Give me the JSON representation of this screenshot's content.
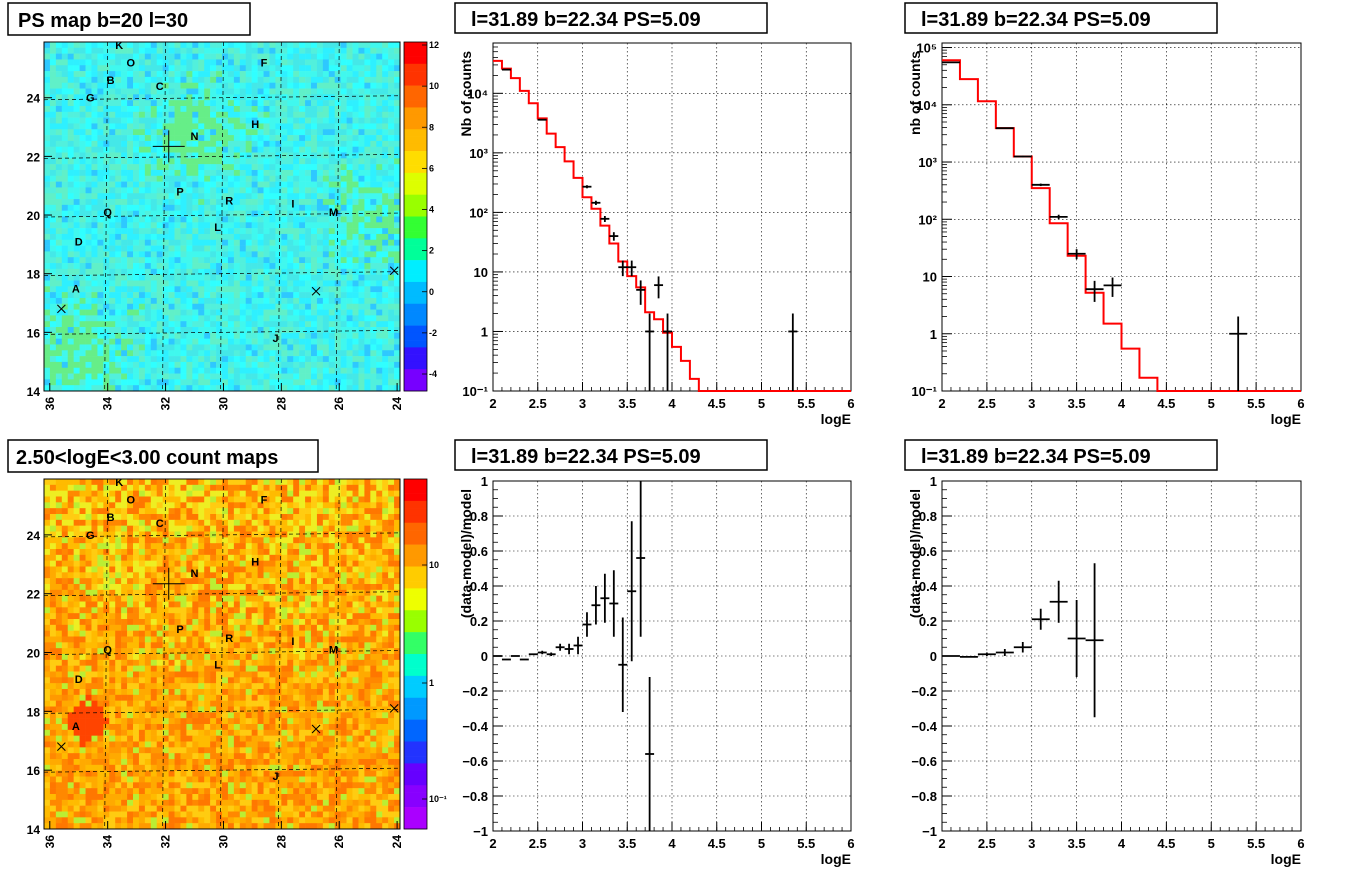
{
  "colors": {
    "model_line": "#ff0000",
    "data_marker": "#000000",
    "grid": "#000000",
    "title_box": "#000000"
  },
  "maps": [
    {
      "title": "PS map b=20 l=30",
      "xticks": [
        "36",
        "34",
        "32",
        "30",
        "28",
        "26",
        "24"
      ],
      "yticks": [
        "14",
        "16",
        "18",
        "20",
        "22",
        "24"
      ],
      "colorbar": {
        "scale": "linear",
        "ticks": [
          "12",
          "10",
          "8",
          "6",
          "4",
          "2",
          "0",
          "-2",
          "-4"
        ]
      },
      "palette": "cyan-green",
      "sources": [
        {
          "label": "K",
          "l": 33.6,
          "b": 25.8
        },
        {
          "label": "O",
          "l": 33.2,
          "b": 25.2
        },
        {
          "label": "F",
          "l": 28.6,
          "b": 25.2
        },
        {
          "label": "B",
          "l": 33.9,
          "b": 24.6
        },
        {
          "label": "G",
          "l": 34.6,
          "b": 24.0
        },
        {
          "label": "C",
          "l": 32.2,
          "b": 24.4
        },
        {
          "label": "H",
          "l": 28.9,
          "b": 23.1
        },
        {
          "label": "N",
          "l": 31.0,
          "b": 22.7
        },
        {
          "label": "P",
          "l": 31.5,
          "b": 20.8
        },
        {
          "label": "R",
          "l": 29.8,
          "b": 20.5
        },
        {
          "label": "I",
          "l": 27.6,
          "b": 20.4
        },
        {
          "label": "M",
          "l": 26.2,
          "b": 20.1
        },
        {
          "label": "Q",
          "l": 34.0,
          "b": 20.1
        },
        {
          "label": "L",
          "l": 30.2,
          "b": 19.6
        },
        {
          "label": "D",
          "l": 35.0,
          "b": 19.1
        },
        {
          "label": "A",
          "l": 35.1,
          "b": 17.5
        },
        {
          "label": "J",
          "l": 28.2,
          "b": 15.8
        }
      ],
      "crosses": [
        {
          "l": 35.6,
          "b": 16.8
        },
        {
          "l": 26.8,
          "b": 17.4
        },
        {
          "l": 24.1,
          "b": 18.1
        }
      ],
      "target": {
        "l": 31.89,
        "b": 22.34
      }
    },
    {
      "title": "2.50<logE<3.00 count maps",
      "xticks": [
        "36",
        "34",
        "32",
        "30",
        "28",
        "26",
        "24"
      ],
      "yticks": [
        "14",
        "16",
        "18",
        "20",
        "22",
        "24"
      ],
      "colorbar": {
        "scale": "log",
        "ticks": [
          "10",
          "1",
          "10⁻¹"
        ]
      },
      "palette": "yellow-red",
      "sources": [
        {
          "label": "K",
          "l": 33.6,
          "b": 25.8
        },
        {
          "label": "O",
          "l": 33.2,
          "b": 25.2
        },
        {
          "label": "F",
          "l": 28.6,
          "b": 25.2
        },
        {
          "label": "B",
          "l": 33.9,
          "b": 24.6
        },
        {
          "label": "G",
          "l": 34.6,
          "b": 24.0
        },
        {
          "label": "C",
          "l": 32.2,
          "b": 24.4
        },
        {
          "label": "H",
          "l": 28.9,
          "b": 23.1
        },
        {
          "label": "N",
          "l": 31.0,
          "b": 22.7
        },
        {
          "label": "P",
          "l": 31.5,
          "b": 20.8
        },
        {
          "label": "R",
          "l": 29.8,
          "b": 20.5
        },
        {
          "label": "I",
          "l": 27.6,
          "b": 20.4
        },
        {
          "label": "M",
          "l": 26.2,
          "b": 20.1
        },
        {
          "label": "Q",
          "l": 34.0,
          "b": 20.1
        },
        {
          "label": "L",
          "l": 30.2,
          "b": 19.6
        },
        {
          "label": "D",
          "l": 35.0,
          "b": 19.1
        },
        {
          "label": "A",
          "l": 35.1,
          "b": 17.5
        },
        {
          "label": "J",
          "l": 28.2,
          "b": 15.8
        }
      ],
      "crosses": [
        {
          "l": 35.6,
          "b": 16.8
        },
        {
          "l": 26.8,
          "b": 17.4
        },
        {
          "l": 24.1,
          "b": 18.1
        }
      ],
      "target": {
        "l": 31.89,
        "b": 22.34
      }
    }
  ],
  "chart_data": [
    {
      "type": "line",
      "title": "l=31.89 b=22.34 PS=5.09",
      "xlabel": "logE",
      "ylabel": "Nb of counts",
      "xlim": [
        2,
        6
      ],
      "ylim": [
        0.1,
        70000
      ],
      "yscale": "log",
      "xticks": [
        "2",
        "2.5",
        "3",
        "3.5",
        "4",
        "4.5",
        "5",
        "5.5",
        "6"
      ],
      "yticks": [
        {
          "v": 0.1,
          "label": "10⁻¹"
        },
        {
          "v": 1,
          "label": "1"
        },
        {
          "v": 10,
          "label": "10"
        },
        {
          "v": 100,
          "label": "10²"
        },
        {
          "v": 1000,
          "label": "10³"
        },
        {
          "v": 10000,
          "label": "10⁴"
        }
      ],
      "grid": true,
      "model": {
        "edges": [
          2.0,
          2.1,
          2.2,
          2.3,
          2.4,
          2.5,
          2.6,
          2.7,
          2.8,
          2.9,
          3.0,
          3.1,
          3.2,
          3.3,
          3.4,
          3.5,
          3.6,
          3.7,
          3.8,
          3.9,
          4.0,
          4.1,
          4.2,
          4.3,
          6.0
        ],
        "values": [
          35000,
          26000,
          18000,
          11000,
          6800,
          3800,
          2100,
          1250,
          720,
          380,
          180,
          115,
          60,
          30,
          15,
          8.5,
          5.5,
          2.1,
          1.6,
          0.95,
          0.55,
          0.32,
          0.16,
          0.1
        ]
      },
      "data": [
        {
          "x": 2.15,
          "y": 25000,
          "xerr": 0.05,
          "yerr": 0
        },
        {
          "x": 2.55,
          "y": 3600,
          "xerr": 0.05,
          "yerr": 0
        },
        {
          "x": 3.05,
          "y": 270,
          "xerr": 0.05,
          "yerr": 16
        },
        {
          "x": 3.15,
          "y": 145,
          "xerr": 0.05,
          "yerr": 12
        },
        {
          "x": 3.25,
          "y": 78,
          "xerr": 0.05,
          "yerr": 9
        },
        {
          "x": 3.35,
          "y": 40,
          "xerr": 0.05,
          "yerr": 6.5
        },
        {
          "x": 3.45,
          "y": 12,
          "xerr": 0.05,
          "yerr": 3.5
        },
        {
          "x": 3.55,
          "y": 12,
          "xerr": 0.05,
          "yerr": 3.5
        },
        {
          "x": 3.65,
          "y": 5,
          "xerr": 0.05,
          "yerr": 2.2
        },
        {
          "x": 3.75,
          "y": 1,
          "xerr": 0.05,
          "yerr": 1
        },
        {
          "x": 3.85,
          "y": 6,
          "xerr": 0.05,
          "yerr": 2.4
        },
        {
          "x": 3.95,
          "y": 1,
          "xerr": 0.05,
          "yerr": 1
        },
        {
          "x": 5.35,
          "y": 1,
          "xerr": 0.05,
          "yerr": 1
        }
      ]
    },
    {
      "type": "line",
      "title": "l=31.89 b=22.34 PS=5.09",
      "xlabel": "logE",
      "ylabel": "nb of counts",
      "xlim": [
        2,
        6
      ],
      "ylim": [
        0.1,
        120000
      ],
      "yscale": "log",
      "xticks": [
        "2",
        "2.5",
        "3",
        "3.5",
        "4",
        "4.5",
        "5",
        "5.5",
        "6"
      ],
      "yticks": [
        {
          "v": 0.1,
          "label": "10⁻¹"
        },
        {
          "v": 1,
          "label": "1"
        },
        {
          "v": 10,
          "label": "10"
        },
        {
          "v": 100,
          "label": "10²"
        },
        {
          "v": 1000,
          "label": "10³"
        },
        {
          "v": 10000,
          "label": "10⁴"
        },
        {
          "v": 100000,
          "label": "10⁵"
        }
      ],
      "grid": true,
      "model": {
        "edges": [
          2.0,
          2.2,
          2.4,
          2.6,
          2.8,
          3.0,
          3.2,
          3.4,
          3.6,
          3.8,
          4.0,
          4.2,
          4.4,
          6.0
        ],
        "values": [
          60000,
          28000,
          11500,
          3900,
          1250,
          350,
          85,
          23,
          5.2,
          1.5,
          0.55,
          0.17,
          0.1
        ]
      },
      "data": [
        {
          "x": 2.1,
          "y": 55000,
          "xerr": 0.1,
          "yerr": 0
        },
        {
          "x": 2.7,
          "y": 3900,
          "xerr": 0.1,
          "yerr": 0
        },
        {
          "x": 2.9,
          "y": 1250,
          "xerr": 0.1,
          "yerr": 35
        },
        {
          "x": 3.1,
          "y": 400,
          "xerr": 0.1,
          "yerr": 20
        },
        {
          "x": 3.3,
          "y": 110,
          "xerr": 0.1,
          "yerr": 10
        },
        {
          "x": 3.5,
          "y": 25,
          "xerr": 0.1,
          "yerr": 5
        },
        {
          "x": 3.7,
          "y": 6,
          "xerr": 0.1,
          "yerr": 2.4
        },
        {
          "x": 3.9,
          "y": 7,
          "xerr": 0.1,
          "yerr": 2.6
        },
        {
          "x": 5.3,
          "y": 1,
          "xerr": 0.1,
          "yerr": 1
        }
      ]
    },
    {
      "type": "scatter",
      "title": "l=31.89 b=22.34 PS=5.09",
      "xlabel": "logE",
      "ylabel": "(data-model)/model",
      "xlim": [
        2,
        6
      ],
      "ylim": [
        -1,
        1
      ],
      "yscale": "linear",
      "xticks": [
        "2",
        "2.5",
        "3",
        "3.5",
        "4",
        "4.5",
        "5",
        "5.5",
        "6"
      ],
      "yticks": [
        {
          "v": 1,
          "label": "1"
        },
        {
          "v": 0.8,
          "label": "0.8"
        },
        {
          "v": 0.6,
          "label": "0.6"
        },
        {
          "v": 0.4,
          "label": "0.4"
        },
        {
          "v": 0.2,
          "label": "0.2"
        },
        {
          "v": 0,
          "label": "0"
        },
        {
          "v": -0.2,
          "label": "−0.2"
        },
        {
          "v": -0.4,
          "label": "−0.4"
        },
        {
          "v": -0.6,
          "label": "−0.6"
        },
        {
          "v": -0.8,
          "label": "−0.8"
        },
        {
          "v": -1,
          "label": "−1"
        }
      ],
      "grid": true,
      "data": [
        {
          "x": 2.05,
          "y": 0.0,
          "xerr": 0.05,
          "yerr": 0
        },
        {
          "x": 2.15,
          "y": -0.02,
          "xerr": 0.05,
          "yerr": 0
        },
        {
          "x": 2.25,
          "y": 0.0,
          "xerr": 0.05,
          "yerr": 0
        },
        {
          "x": 2.35,
          "y": -0.02,
          "xerr": 0.05,
          "yerr": 0
        },
        {
          "x": 2.45,
          "y": 0.01,
          "xerr": 0.05,
          "yerr": 0
        },
        {
          "x": 2.55,
          "y": 0.02,
          "xerr": 0.05,
          "yerr": 0.01
        },
        {
          "x": 2.65,
          "y": 0.01,
          "xerr": 0.05,
          "yerr": 0.01
        },
        {
          "x": 2.75,
          "y": 0.05,
          "xerr": 0.05,
          "yerr": 0.02
        },
        {
          "x": 2.85,
          "y": 0.04,
          "xerr": 0.05,
          "yerr": 0.03
        },
        {
          "x": 2.95,
          "y": 0.06,
          "xerr": 0.05,
          "yerr": 0.05
        },
        {
          "x": 3.05,
          "y": 0.18,
          "xerr": 0.05,
          "yerr": 0.07
        },
        {
          "x": 3.15,
          "y": 0.29,
          "xerr": 0.05,
          "yerr": 0.11
        },
        {
          "x": 3.25,
          "y": 0.33,
          "xerr": 0.05,
          "yerr": 0.14
        },
        {
          "x": 3.35,
          "y": 0.3,
          "xerr": 0.05,
          "yerr": 0.19
        },
        {
          "x": 3.45,
          "y": -0.05,
          "xerr": 0.05,
          "yerr": 0.27
        },
        {
          "x": 3.55,
          "y": 0.37,
          "xerr": 0.05,
          "yerr": 0.4
        },
        {
          "x": 3.65,
          "y": 0.56,
          "xerr": 0.05,
          "yerr": 0.45
        },
        {
          "x": 3.75,
          "y": -0.56,
          "xerr": 0.05,
          "yerr": 0.44
        }
      ]
    },
    {
      "type": "scatter",
      "title": "l=31.89 b=22.34 PS=5.09",
      "xlabel": "logE",
      "ylabel": "(data-model)/model",
      "xlim": [
        2,
        6
      ],
      "ylim": [
        -1,
        1
      ],
      "yscale": "linear",
      "xticks": [
        "2",
        "2.5",
        "3",
        "3.5",
        "4",
        "4.5",
        "5",
        "5.5",
        "6"
      ],
      "yticks": [
        {
          "v": 1,
          "label": "1"
        },
        {
          "v": 0.8,
          "label": "0.8"
        },
        {
          "v": 0.6,
          "label": "0.6"
        },
        {
          "v": 0.4,
          "label": "0.4"
        },
        {
          "v": 0.2,
          "label": "0.2"
        },
        {
          "v": 0,
          "label": "0"
        },
        {
          "v": -0.2,
          "label": "−0.2"
        },
        {
          "v": -0.4,
          "label": "−0.4"
        },
        {
          "v": -0.6,
          "label": "−0.6"
        },
        {
          "v": -0.8,
          "label": "−0.8"
        },
        {
          "v": -1,
          "label": "−1"
        }
      ],
      "grid": true,
      "data": [
        {
          "x": 2.1,
          "y": 0.0,
          "xerr": 0.1,
          "yerr": 0
        },
        {
          "x": 2.3,
          "y": -0.005,
          "xerr": 0.1,
          "yerr": 0
        },
        {
          "x": 2.5,
          "y": 0.01,
          "xerr": 0.1,
          "yerr": 0.01
        },
        {
          "x": 2.7,
          "y": 0.02,
          "xerr": 0.1,
          "yerr": 0.02
        },
        {
          "x": 2.9,
          "y": 0.05,
          "xerr": 0.1,
          "yerr": 0.03
        },
        {
          "x": 3.1,
          "y": 0.21,
          "xerr": 0.1,
          "yerr": 0.06
        },
        {
          "x": 3.3,
          "y": 0.31,
          "xerr": 0.1,
          "yerr": 0.12
        },
        {
          "x": 3.5,
          "y": 0.1,
          "xerr": 0.1,
          "yerr": 0.22
        },
        {
          "x": 3.7,
          "y": 0.09,
          "xerr": 0.1,
          "yerr": 0.44
        }
      ]
    }
  ]
}
